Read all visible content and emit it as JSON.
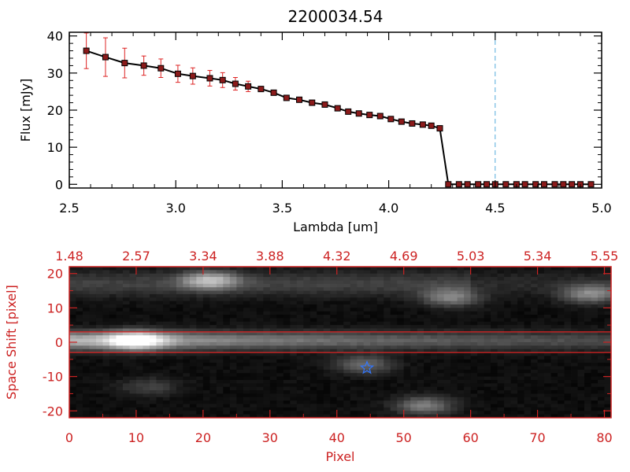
{
  "colors": {
    "spectrum_line": "#000000",
    "spectrum_marker": "#8b1a1a",
    "error_bar": "#dd2222",
    "cutoff_line": "#55aadd",
    "image_axes": "#cc2222",
    "extraction_box": "#dd2222",
    "star_marker": "#3377ff"
  },
  "chart_data": [
    {
      "type": "line",
      "title": "2200034.54",
      "xlabel": "Lambda [um]",
      "ylabel": "Flux [mJy]",
      "xlim": [
        2.5,
        5.0
      ],
      "ylim": [
        -1,
        41
      ],
      "xticks": [
        "2.5",
        "3.0",
        "3.5",
        "4.0",
        "4.5",
        "5.0"
      ],
      "yticks": [
        "0",
        "10",
        "20",
        "30",
        "40"
      ],
      "grid": false,
      "vline_x": 4.5,
      "series": [
        {
          "x": [
            2.58,
            2.67,
            2.76,
            2.85,
            2.93,
            3.01,
            3.08,
            3.16,
            3.22,
            3.28,
            3.34,
            3.4,
            3.46,
            3.52,
            3.58,
            3.64,
            3.7,
            3.76,
            3.81,
            3.86,
            3.91,
            3.96,
            4.01,
            4.06,
            4.11,
            4.16,
            4.2,
            4.24,
            4.28,
            4.33,
            4.37,
            4.42,
            4.46,
            4.5,
            4.55,
            4.6,
            4.64,
            4.69,
            4.73,
            4.78,
            4.82,
            4.86,
            4.9,
            4.95
          ],
          "y": [
            36.0,
            34.3,
            32.7,
            32.0,
            31.3,
            29.8,
            29.2,
            28.6,
            28.1,
            27.1,
            26.4,
            25.7,
            24.7,
            23.3,
            22.8,
            22.0,
            21.5,
            20.5,
            19.6,
            19.1,
            18.7,
            18.4,
            17.6,
            16.9,
            16.4,
            16.1,
            15.8,
            15.1,
            0.0,
            0.0,
            0.0,
            0.0,
            0.0,
            0.0,
            0.0,
            0.0,
            0.0,
            0.0,
            0.0,
            0.0,
            0.0,
            0.0,
            0.0,
            0.0
          ],
          "yerr": [
            4.8,
            5.2,
            4.0,
            2.6,
            2.5,
            2.3,
            2.2,
            2.1,
            2.0,
            1.7,
            1.4,
            0.5,
            0.4,
            0.4,
            0.3,
            0.3,
            0.3,
            0.3,
            0.3,
            0.3,
            0.3,
            0.3,
            0.3,
            0.3,
            0.3,
            0.3,
            0.3,
            0.3,
            0,
            0,
            0,
            0,
            0,
            0,
            0,
            0,
            0,
            0,
            0,
            0,
            0,
            0,
            0,
            0
          ]
        }
      ]
    },
    {
      "type": "heatmap",
      "xlabel": "Pixel",
      "ylabel": "Space Shift [pixel]",
      "xlim": [
        0,
        81
      ],
      "ylim": [
        -22,
        22
      ],
      "xticks": [
        "0",
        "10",
        "20",
        "30",
        "40",
        "50",
        "60",
        "70",
        "80"
      ],
      "yticks": [
        "20",
        "10",
        "0",
        "-10",
        "-20"
      ],
      "top_ticks": [
        "1.48",
        "2.57",
        "3.34",
        "3.88",
        "4.32",
        "4.69",
        "5.03",
        "5.34",
        "5.55"
      ],
      "extraction_rows": [
        3,
        -3
      ],
      "star": {
        "x": 44.5,
        "y": -7.5
      },
      "colormap": "grayscale",
      "sources": [
        {
          "x": 10,
          "y": 0.5,
          "peak": 1.0
        },
        {
          "x": 21,
          "y": 18,
          "peak": 0.75
        },
        {
          "x": 44,
          "y": -6.5,
          "peak": 0.45
        },
        {
          "x": 57,
          "y": 13,
          "peak": 0.55
        },
        {
          "x": 78,
          "y": 14,
          "peak": 0.6
        },
        {
          "x": 53,
          "y": -18.5,
          "peak": 0.55
        },
        {
          "x": 12,
          "y": -13,
          "peak": 0.25
        }
      ]
    }
  ]
}
